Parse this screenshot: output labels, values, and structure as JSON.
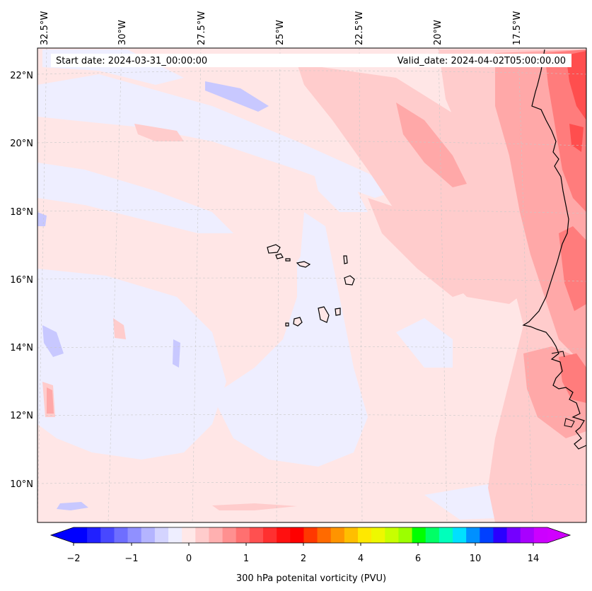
{
  "header": {
    "start_date": "Start date: 2024-03-31_00:00:00",
    "valid_date": "Valid_date: 2024-04-02T05:00:00.00"
  },
  "longitude_labels": [
    "32.5°W",
    "30°W",
    "27.5°W",
    "25°W",
    "22.5°W",
    "20°W",
    "17.5°W"
  ],
  "latitude_labels": [
    "22°N",
    "20°N",
    "18°N",
    "16°N",
    "14°N",
    "12°N",
    "10°N"
  ],
  "colorbar": {
    "title": "300 hPa potenital vorticity (PVU)",
    "tick_labels": [
      "−2",
      "−1",
      "0",
      "1",
      "2",
      "4",
      "6",
      "10",
      "14"
    ],
    "colors": [
      "#0000ff",
      "#2020ff",
      "#4848ff",
      "#6e6eff",
      "#9090ff",
      "#b4b4ff",
      "#d4d4ff",
      "#eeeeff",
      "#ffe8e8",
      "#ffcccc",
      "#ffb0b0",
      "#ff9090",
      "#ff7070",
      "#ff5050",
      "#ff3030",
      "#ff1010",
      "#ff0000",
      "#ff3800",
      "#ff6a00",
      "#ff9400",
      "#ffbe00",
      "#ffe800",
      "#eef800",
      "#c8ff00",
      "#9cff00",
      "#00ff00",
      "#00ff66",
      "#00ffbb",
      "#00e0ff",
      "#0090ff",
      "#0040ff",
      "#2a00ff",
      "#7400ff",
      "#a800ff",
      "#cc00ff"
    ],
    "under_color": "#0000ff",
    "over_color": "#d000ff"
  },
  "map": {
    "background_color": "#ffe6e6",
    "coastline_color": "#000000"
  }
}
